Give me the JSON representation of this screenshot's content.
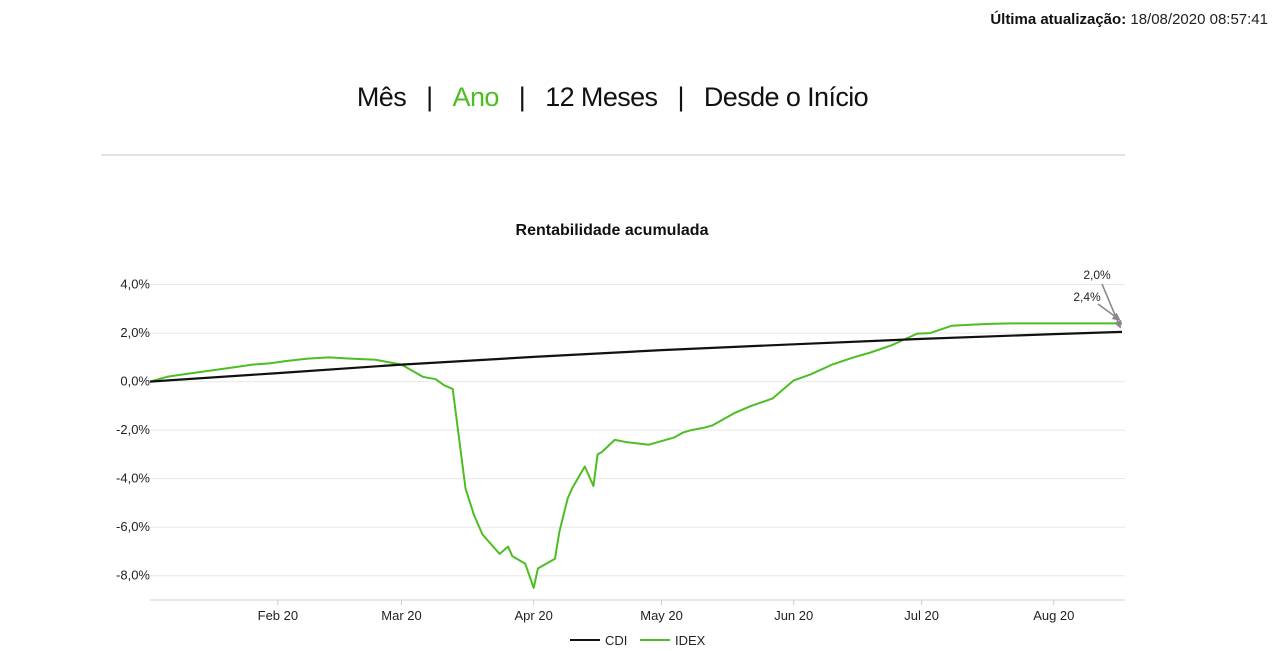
{
  "header": {
    "last_update_label": "Última atualização:",
    "last_update_value": "18/08/2020 08:57:41"
  },
  "period_tabs": {
    "items": [
      "Mês",
      "Ano",
      "12 Meses",
      "Desde o Início"
    ],
    "active": "Ano"
  },
  "colors": {
    "cdi": "#111111",
    "idex": "#4cbe23",
    "annotation_arrow": "#888888"
  },
  "chart_data": {
    "type": "line",
    "title": "Rentabilidade acumulada",
    "xlabel": "",
    "ylabel": "",
    "y_unit": "%",
    "xlim": [
      "2020-01-02",
      "2020-08-17"
    ],
    "ylim": [
      -9,
      4.6
    ],
    "y_ticks": [
      4,
      2,
      0,
      -2,
      -4,
      -6,
      -8
    ],
    "y_tick_labels": [
      "4,0%",
      "2,0%",
      "0,0%",
      "-2,0%",
      "-4,0%",
      "-6,0%",
      "-8,0%"
    ],
    "x_ticks": [
      "2020-02-01",
      "2020-03-01",
      "2020-04-01",
      "2020-05-01",
      "2020-06-01",
      "2020-07-01",
      "2020-08-01"
    ],
    "x_tick_labels": [
      "Feb 20",
      "Mar 20",
      "Apr 20",
      "May 20",
      "Jun 20",
      "Jul 20",
      "Aug 20"
    ],
    "grid": "horizontal",
    "legend_position": "bottom",
    "annotations": [
      "2,0%",
      "2,4%"
    ],
    "series": [
      {
        "name": "CDI",
        "x": [
          "2020-01-02",
          "2020-02-01",
          "2020-03-01",
          "2020-04-01",
          "2020-05-01",
          "2020-06-01",
          "2020-07-01",
          "2020-08-01",
          "2020-08-17"
        ],
        "y": [
          0.0,
          0.35,
          0.7,
          1.02,
          1.3,
          1.54,
          1.76,
          1.96,
          2.05
        ]
      },
      {
        "name": "IDEX",
        "x": [
          "2020-01-02",
          "2020-01-06",
          "2020-01-10",
          "2020-01-14",
          "2020-01-18",
          "2020-01-22",
          "2020-01-26",
          "2020-01-30",
          "2020-02-03",
          "2020-02-08",
          "2020-02-13",
          "2020-02-18",
          "2020-02-24",
          "2020-03-01",
          "2020-03-04",
          "2020-03-06",
          "2020-03-09",
          "2020-03-11",
          "2020-03-13",
          "2020-03-16",
          "2020-03-18",
          "2020-03-20",
          "2020-03-23",
          "2020-03-24",
          "2020-03-26",
          "2020-03-27",
          "2020-03-30",
          "2020-04-01",
          "2020-04-02",
          "2020-04-03",
          "2020-04-06",
          "2020-04-07",
          "2020-04-08",
          "2020-04-09",
          "2020-04-10",
          "2020-04-13",
          "2020-04-15",
          "2020-04-16",
          "2020-04-17",
          "2020-04-20",
          "2020-04-23",
          "2020-04-28",
          "2020-05-04",
          "2020-05-06",
          "2020-05-08",
          "2020-05-11",
          "2020-05-13",
          "2020-05-18",
          "2020-05-22",
          "2020-05-27",
          "2020-06-01",
          "2020-06-05",
          "2020-06-10",
          "2020-06-15",
          "2020-06-19",
          "2020-06-24",
          "2020-06-29",
          "2020-06-30",
          "2020-07-03",
          "2020-07-08",
          "2020-07-13",
          "2020-07-17",
          "2020-07-22",
          "2020-07-27",
          "2020-08-01",
          "2020-08-05",
          "2020-08-10",
          "2020-08-17"
        ],
        "y": [
          0.0,
          0.2,
          0.3,
          0.4,
          0.5,
          0.6,
          0.7,
          0.75,
          0.85,
          0.95,
          1.0,
          0.95,
          0.9,
          0.7,
          0.4,
          0.2,
          0.1,
          -0.15,
          -0.3,
          -4.4,
          -5.5,
          -6.3,
          -6.9,
          -7.1,
          -6.8,
          -7.2,
          -7.5,
          -8.5,
          -7.7,
          -7.6,
          -7.3,
          -6.2,
          -5.5,
          -4.8,
          -4.4,
          -3.5,
          -4.3,
          -3.0,
          -2.9,
          -2.4,
          -2.5,
          -2.6,
          -2.3,
          -2.1,
          -2.0,
          -1.9,
          -1.8,
          -1.3,
          -1.0,
          -0.7,
          0.05,
          0.3,
          0.7,
          1.0,
          1.2,
          1.5,
          1.9,
          1.98,
          2.0,
          2.3,
          2.35,
          2.38,
          2.4,
          2.4,
          2.4,
          2.4,
          2.4,
          2.4
        ]
      }
    ]
  }
}
